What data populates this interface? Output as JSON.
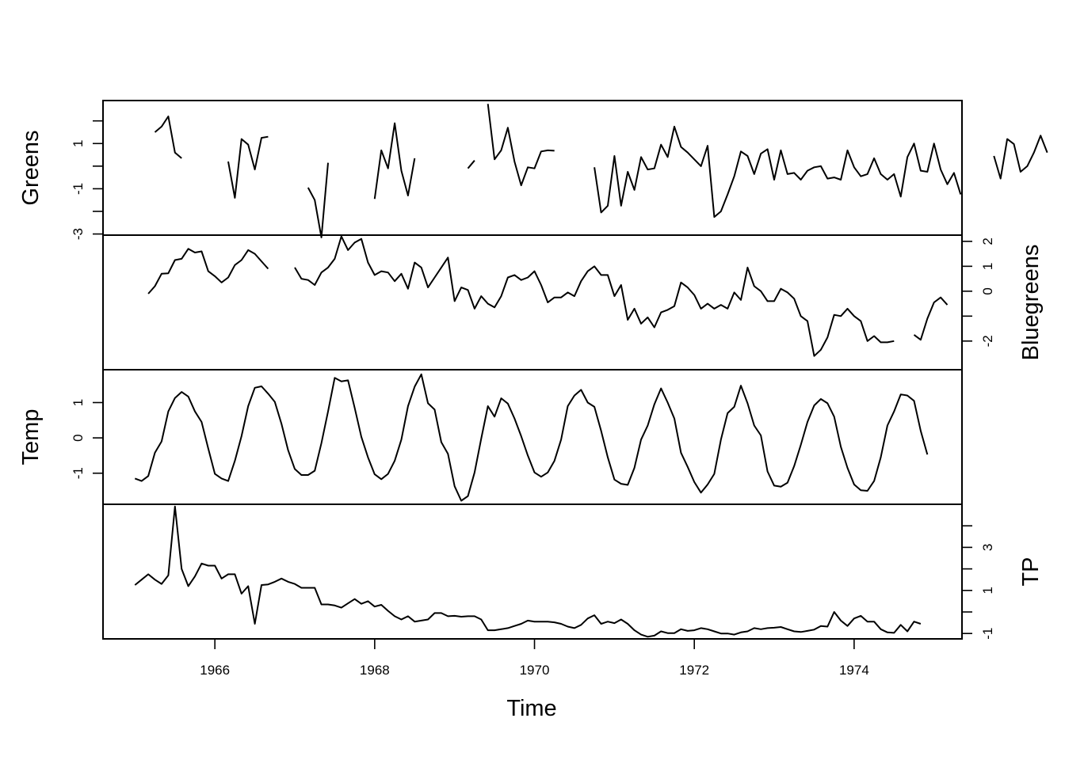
{
  "chart_data": {
    "type": "line",
    "multi_panel": true,
    "frequency": "monthly",
    "xlabel": "Time",
    "xlim": [
      1964.6,
      1975.35
    ],
    "x_ticks": [
      1966,
      1968,
      1970,
      1972,
      1974
    ],
    "x_tick_labels": [
      "1966",
      "1968",
      "1970",
      "1972",
      "1974"
    ],
    "start": 1965.0,
    "panels": [
      {
        "name": "Greens",
        "ylabel": "Greens",
        "axis_side": "left",
        "ylim": [
          -3.05,
          2.9
        ],
        "y_ticks": [
          -3,
          -2,
          -1,
          0,
          1,
          2
        ],
        "y_tick_labels": [
          "-3",
          "",
          "-1",
          "",
          "1",
          ""
        ],
        "values": [
          null,
          null,
          null,
          1.5,
          1.75,
          2.2,
          0.6,
          0.35,
          null,
          null,
          null,
          null,
          null,
          null,
          0.2,
          -1.4,
          1.2,
          0.95,
          -0.15,
          1.25,
          1.3,
          null,
          null,
          null,
          null,
          null,
          -0.95,
          -1.5,
          -3.15,
          0.15,
          null,
          null,
          null,
          null,
          null,
          null,
          -1.45,
          0.7,
          -0.1,
          1.9,
          -0.2,
          -1.3,
          0.35,
          null,
          null,
          null,
          null,
          null,
          null,
          null,
          -0.1,
          0.25,
          null,
          2.75,
          0.3,
          0.7,
          1.7,
          0.2,
          -0.85,
          -0.05,
          -0.1,
          0.65,
          0.7,
          0.68,
          null,
          null,
          null,
          null,
          null,
          -0.05,
          -2.05,
          -1.75,
          0.45,
          -1.75,
          -0.25,
          -1.05,
          0.4,
          -0.15,
          -0.1,
          0.95,
          0.4,
          1.75,
          0.85,
          0.6,
          0.3,
          0.0,
          0.9,
          -2.25,
          -2.0,
          -1.25,
          -0.45,
          0.65,
          0.45,
          -0.35,
          0.55,
          0.75,
          -0.6,
          0.7,
          -0.35,
          -0.3,
          -0.6,
          -0.2,
          -0.05,
          0.0,
          -0.55,
          -0.5,
          -0.6,
          0.7,
          -0.05,
          -0.45,
          -0.35,
          0.35,
          -0.35,
          -0.6,
          -0.35,
          -1.35,
          0.4,
          1.0,
          -0.2,
          -0.25,
          1.0,
          -0.15,
          -0.8,
          -0.3,
          -1.25,
          null,
          null,
          null,
          null,
          0.45,
          -0.55,
          1.2,
          0.98,
          -0.25,
          0.0,
          0.6,
          1.35,
          0.6
        ]
      },
      {
        "name": "Bluegreens",
        "ylabel": "Bluegreens",
        "axis_side": "right",
        "ylim": [
          -3.15,
          2.25
        ],
        "y_ticks": [
          -2,
          -1,
          0,
          1,
          2
        ],
        "y_tick_labels": [
          "-2",
          "",
          "0",
          "1",
          "2"
        ],
        "values": [
          null,
          null,
          -0.1,
          0.2,
          0.7,
          0.72,
          1.25,
          1.3,
          1.7,
          1.55,
          1.6,
          0.8,
          0.6,
          0.35,
          0.55,
          1.05,
          1.25,
          1.65,
          1.5,
          1.2,
          0.9,
          null,
          null,
          null,
          0.95,
          0.5,
          0.45,
          0.25,
          0.75,
          0.95,
          1.3,
          2.2,
          1.65,
          1.95,
          2.1,
          1.15,
          0.65,
          0.8,
          0.75,
          0.4,
          0.7,
          0.1,
          1.15,
          0.95,
          0.15,
          0.55,
          0.95,
          1.35,
          -0.4,
          0.15,
          0.05,
          -0.7,
          -0.2,
          -0.5,
          -0.65,
          -0.2,
          0.55,
          0.65,
          0.45,
          0.55,
          0.8,
          0.25,
          -0.45,
          -0.25,
          -0.25,
          -0.05,
          -0.2,
          0.4,
          0.8,
          1.0,
          0.65,
          0.65,
          -0.2,
          0.25,
          -1.15,
          -0.7,
          -1.3,
          -1.05,
          -1.45,
          -0.85,
          -0.75,
          -0.6,
          0.35,
          0.15,
          -0.15,
          -0.7,
          -0.5,
          -0.7,
          -0.55,
          -0.7,
          -0.05,
          -0.35,
          0.95,
          0.2,
          0.0,
          -0.4,
          -0.4,
          0.1,
          -0.05,
          -0.3,
          -1.0,
          -1.2,
          -2.6,
          -2.35,
          -1.85,
          -0.95,
          -1.0,
          -0.7,
          -1.0,
          -1.2,
          -2.0,
          -1.8,
          -2.05,
          -2.05,
          -2.0,
          null,
          null,
          -1.75,
          -1.95,
          -1.1,
          -0.45,
          -0.25,
          -0.55
        ]
      },
      {
        "name": "Temp",
        "ylabel": "Temp",
        "axis_side": "left",
        "ylim": [
          -1.88,
          1.93
        ],
        "y_ticks": [
          -1,
          0,
          1
        ],
        "y_tick_labels": [
          "-1",
          "0",
          "1"
        ],
        "values": [
          -1.15,
          -1.22,
          -1.08,
          -0.42,
          -0.1,
          0.75,
          1.13,
          1.3,
          1.17,
          0.75,
          0.45,
          -0.3,
          -1.02,
          -1.15,
          -1.22,
          -0.65,
          0.05,
          0.9,
          1.42,
          1.46,
          1.25,
          1.02,
          0.4,
          -0.35,
          -0.88,
          -1.05,
          -1.05,
          -0.93,
          -0.15,
          0.75,
          1.7,
          1.6,
          1.63,
          0.85,
          0.03,
          -0.55,
          -1.03,
          -1.17,
          -1.02,
          -0.65,
          -0.05,
          0.9,
          1.45,
          1.8,
          0.98,
          0.8,
          -0.12,
          -0.45,
          -1.37,
          -1.78,
          -1.65,
          -0.98,
          -0.02,
          0.9,
          0.6,
          1.12,
          0.97,
          0.55,
          0.05,
          -0.5,
          -0.98,
          -1.1,
          -0.98,
          -0.65,
          -0.05,
          0.9,
          1.2,
          1.36,
          1.0,
          0.88,
          0.2,
          -0.55,
          -1.18,
          -1.3,
          -1.33,
          -0.85,
          -0.05,
          0.35,
          0.95,
          1.4,
          1.0,
          0.55,
          -0.42,
          -0.82,
          -1.25,
          -1.55,
          -1.32,
          -1.02,
          -0.05,
          0.7,
          0.88,
          1.48,
          0.98,
          0.35,
          0.07,
          -0.95,
          -1.35,
          -1.38,
          -1.27,
          -0.8,
          -0.2,
          0.45,
          0.92,
          1.1,
          0.98,
          0.6,
          -0.25,
          -0.85,
          -1.32,
          -1.48,
          -1.5,
          -1.22,
          -0.55,
          0.35,
          0.75,
          1.23,
          1.2,
          1.05,
          0.2,
          -0.47
        ]
      },
      {
        "name": "TP",
        "ylabel": "TP",
        "axis_side": "right",
        "ylim": [
          -1.25,
          5.0
        ],
        "y_ticks": [
          -1,
          0,
          1,
          2,
          3,
          4
        ],
        "y_tick_labels": [
          "-1",
          "",
          "1",
          "",
          "3",
          ""
        ],
        "values": [
          1.25,
          1.5,
          1.75,
          1.5,
          1.3,
          1.7,
          4.9,
          2.0,
          1.2,
          1.65,
          2.25,
          2.15,
          2.15,
          1.55,
          1.75,
          1.75,
          0.85,
          1.2,
          -0.55,
          1.25,
          1.28,
          1.4,
          1.55,
          1.4,
          1.3,
          1.12,
          1.12,
          1.12,
          0.35,
          0.35,
          0.3,
          0.2,
          0.4,
          0.6,
          0.38,
          0.5,
          0.25,
          0.33,
          0.05,
          -0.2,
          -0.35,
          -0.2,
          -0.45,
          -0.4,
          -0.35,
          -0.05,
          -0.05,
          -0.2,
          -0.18,
          -0.22,
          -0.2,
          -0.2,
          -0.35,
          -0.85,
          -0.85,
          -0.8,
          -0.75,
          -0.65,
          -0.55,
          -0.4,
          -0.45,
          -0.45,
          -0.45,
          -0.48,
          -0.55,
          -0.68,
          -0.75,
          -0.6,
          -0.3,
          -0.15,
          -0.55,
          -0.45,
          -0.52,
          -0.35,
          -0.55,
          -0.85,
          -1.05,
          -1.15,
          -1.1,
          -0.9,
          -0.98,
          -0.98,
          -0.8,
          -0.88,
          -0.85,
          -0.75,
          -0.8,
          -0.9,
          -1.0,
          -1.0,
          -1.05,
          -0.95,
          -0.9,
          -0.75,
          -0.8,
          -0.75,
          -0.73,
          -0.7,
          -0.8,
          -0.9,
          -0.93,
          -0.88,
          -0.82,
          -0.65,
          -0.68,
          0.0,
          -0.4,
          -0.65,
          -0.3,
          -0.18,
          -0.45,
          -0.45,
          -0.8,
          -0.95,
          -0.97,
          -0.6,
          -0.9,
          -0.45,
          -0.55
        ]
      }
    ]
  }
}
